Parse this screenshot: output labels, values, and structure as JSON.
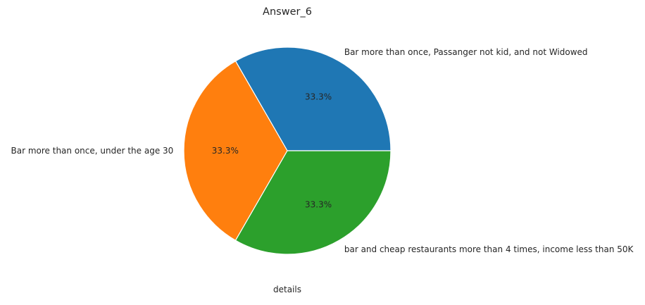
{
  "chart_data": {
    "type": "pie",
    "title": "Answer_6",
    "xlabel": "details",
    "ylabel": "",
    "slices": [
      {
        "label": "Bar more than once, Passanger not kid, and not Widowed",
        "value": 33.3,
        "pct_label": "33.3%",
        "color": "#1f77b4"
      },
      {
        "label": "Bar more than once, under the age 30",
        "value": 33.3,
        "pct_label": "33.3%",
        "color": "#ff7f0e"
      },
      {
        "label": "bar and cheap restaurants more than 4 times, income less than 50K",
        "value": 33.3,
        "pct_label": "33.3%",
        "color": "#2ca02c"
      }
    ],
    "start_angle_deg": 0,
    "direction": "counterclockwise",
    "wedge_edge_color": "#ffffff"
  }
}
